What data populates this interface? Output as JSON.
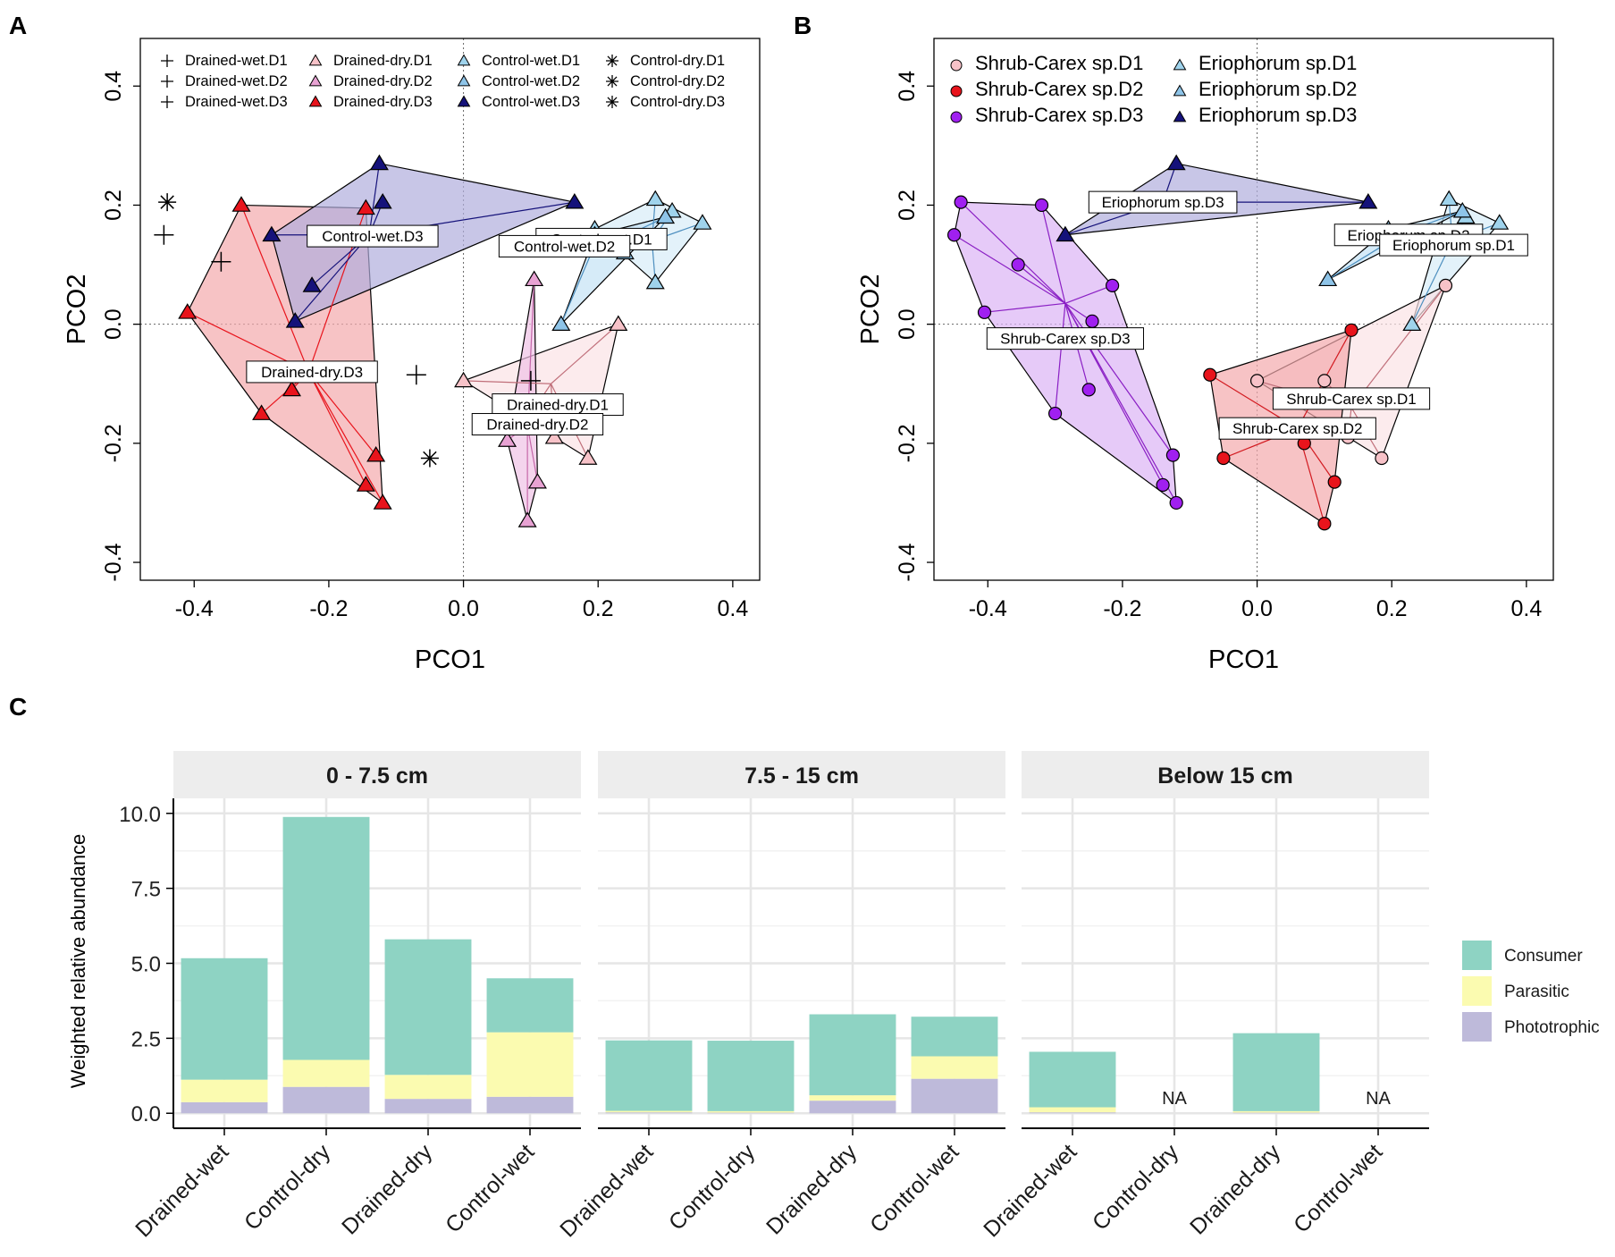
{
  "figure": {
    "panel_labels": [
      "A",
      "B",
      "C"
    ]
  },
  "colors": {
    "drained_dry": "#f4a9ad",
    "drained_dry_d1": "#f7c2c8",
    "drained_dry_d2": "#e8a2d3",
    "drained_dry_d3": "#e8141c",
    "control_wet_d1": "#9fd3ec",
    "control_wet_d2": "#8ec4e8",
    "control_wet_d3": "#15127a",
    "shrub_d1": "#f7c2c8",
    "shrub_d2": "#e8141c",
    "shrub_d3": "#a020f0",
    "erio_d1": "#9fd3ec",
    "erio_d2": "#8ec4e8",
    "erio_d3": "#15127a",
    "consumer": "#8ed3c3",
    "parasitic": "#fbfbb0",
    "phototrophic": "#bebada"
  },
  "chart_data": [
    {
      "id": "A",
      "type": "scatter",
      "title": "",
      "xlabel": "PCO1",
      "ylabel": "PCO2",
      "xlim": [
        -0.48,
        0.44
      ],
      "ylim": [
        -0.43,
        0.48
      ],
      "xticks": [
        "-0.4",
        "-0.2",
        "0.0",
        "0.2",
        "0.4"
      ],
      "xtick_values": [
        -0.4,
        -0.2,
        0.0,
        0.2,
        0.4
      ],
      "yticks": [
        "-0.4",
        "-0.2",
        "0.0",
        "0.2",
        "0.4"
      ],
      "ytick_values": [
        -0.4,
        -0.2,
        0.0,
        0.2,
        0.4
      ],
      "legend": [
        {
          "label": "Drained-wet.D1",
          "marker": "plus",
          "color": "#000000"
        },
        {
          "label": "Drained-wet.D2",
          "marker": "plus",
          "color": "#000000"
        },
        {
          "label": "Drained-wet.D3",
          "marker": "plus",
          "color": "#000000"
        },
        {
          "label": "Drained-dry.D1",
          "marker": "triangle",
          "color": "#f7c2c8"
        },
        {
          "label": "Drained-dry.D2",
          "marker": "triangle",
          "color": "#e8a2d3"
        },
        {
          "label": "Drained-dry.D3",
          "marker": "triangle",
          "color": "#e8141c"
        },
        {
          "label": "Control-wet.D1",
          "marker": "triangle",
          "color": "#9fd3ec"
        },
        {
          "label": "Control-wet.D2",
          "marker": "triangle",
          "color": "#8ec4e8"
        },
        {
          "label": "Control-wet.D3",
          "marker": "triangle",
          "color": "#15127a"
        },
        {
          "label": "Control-dry.D1",
          "marker": "star",
          "color": "#000000"
        },
        {
          "label": "Control-dry.D2",
          "marker": "star",
          "color": "#000000"
        },
        {
          "label": "Control-dry.D3",
          "marker": "star",
          "color": "#000000"
        }
      ],
      "groups": [
        {
          "name": "Drained-dry.D3",
          "color": "#e8141c",
          "fill": "#f4a9ad",
          "marker": "triangle",
          "centroid": [
            -0.23,
            -0.08
          ],
          "points": [
            [
              -0.41,
              0.02
            ],
            [
              -0.33,
              0.2
            ],
            [
              -0.145,
              0.195
            ],
            [
              -0.3,
              -0.15
            ],
            [
              -0.255,
              -0.11
            ],
            [
              -0.145,
              -0.27
            ],
            [
              -0.13,
              -0.22
            ],
            [
              -0.12,
              -0.3
            ]
          ]
        },
        {
          "name": "Control-wet.D3",
          "color": "#15127a",
          "fill": "#b1aedd",
          "marker": "triangle",
          "centroid": [
            -0.14,
            0.15
          ],
          "points": [
            [
              -0.285,
              0.15
            ],
            [
              -0.125,
              0.27
            ],
            [
              -0.12,
              0.205
            ],
            [
              0.165,
              0.205
            ],
            [
              -0.225,
              0.065
            ],
            [
              -0.25,
              0.005
            ]
          ]
        },
        {
          "name": "Control-wet.D1",
          "color": "#4d8fbf",
          "fill": "#d7ecf8",
          "marker": "triangle",
          "centroid": [
            0.28,
            0.14
          ],
          "points": [
            [
              0.195,
              0.16
            ],
            [
              0.285,
              0.21
            ],
            [
              0.355,
              0.17
            ],
            [
              0.31,
              0.19
            ],
            [
              0.285,
              0.07
            ]
          ]
        },
        {
          "name": "Control-wet.D2",
          "color": "#4d8fbf",
          "fill": "#c5e3f5",
          "marker": "triangle",
          "centroid": [
            0.19,
            0.12
          ],
          "points": [
            [
              0.145,
              0.0
            ],
            [
              0.195,
              0.15
            ],
            [
              0.3,
              0.18
            ],
            [
              0.24,
              0.12
            ]
          ]
        },
        {
          "name": "Drained-dry.D1",
          "color": "#c06f7a",
          "fill": "#fbe3e6",
          "marker": "triangle",
          "centroid": [
            0.13,
            -0.1
          ],
          "points": [
            [
              0.0,
              -0.095
            ],
            [
              0.23,
              0.0
            ],
            [
              0.185,
              -0.225
            ],
            [
              0.135,
              -0.19
            ],
            [
              0.095,
              -0.16
            ]
          ]
        },
        {
          "name": "Drained-dry.D2",
          "color": "#c467a9",
          "fill": "#efc2e6",
          "marker": "triangle",
          "centroid": [
            0.095,
            -0.17
          ],
          "points": [
            [
              0.105,
              0.075
            ],
            [
              0.065,
              -0.195
            ],
            [
              0.095,
              -0.33
            ],
            [
              0.11,
              -0.265
            ],
            [
              0.08,
              -0.14
            ]
          ]
        }
      ],
      "other_points": [
        {
          "name": "Drained-wet",
          "marker": "plus",
          "points": [
            [
              -0.445,
              0.15
            ],
            [
              -0.36,
              0.105
            ],
            [
              -0.07,
              -0.085
            ],
            [
              0.1,
              -0.095
            ]
          ]
        },
        {
          "name": "Control-dry",
          "marker": "star",
          "points": [
            [
              -0.44,
              0.205
            ],
            [
              -0.05,
              -0.225
            ]
          ]
        }
      ],
      "labels": [
        {
          "text": "Control-wet.D3",
          "at": [
            -0.135,
            0.148
          ]
        },
        {
          "text": "Control-wet.D1",
          "at": [
            0.205,
            0.143
          ]
        },
        {
          "text": "Control-wet.D2",
          "at": [
            0.15,
            0.131
          ]
        },
        {
          "text": "Drained-dry.D3",
          "at": [
            -0.225,
            -0.08
          ]
        },
        {
          "text": "Drained-dry.D1",
          "at": [
            0.14,
            -0.135
          ]
        },
        {
          "text": "Drained-dry.D2",
          "at": [
            0.11,
            -0.168
          ]
        }
      ]
    },
    {
      "id": "B",
      "type": "scatter",
      "title": "",
      "xlabel": "PCO1",
      "ylabel": "PCO2",
      "xlim": [
        -0.48,
        0.44
      ],
      "ylim": [
        -0.43,
        0.48
      ],
      "xticks": [
        "-0.4",
        "-0.2",
        "0.0",
        "0.2",
        "0.4"
      ],
      "xtick_values": [
        -0.4,
        -0.2,
        0.0,
        0.2,
        0.4
      ],
      "yticks": [
        "-0.4",
        "-0.2",
        "0.0",
        "0.2",
        "0.4"
      ],
      "ytick_values": [
        -0.4,
        -0.2,
        0.0,
        0.2,
        0.4
      ],
      "legend": [
        {
          "label": "Shrub-Carex sp.D1",
          "marker": "circle",
          "color": "#f7c2c8"
        },
        {
          "label": "Shrub-Carex sp.D2",
          "marker": "circle",
          "color": "#e8141c"
        },
        {
          "label": "Shrub-Carex sp.D3",
          "marker": "circle",
          "color": "#a020f0"
        },
        {
          "label": "Eriophorum sp.D1",
          "marker": "triangle",
          "color": "#9fd3ec"
        },
        {
          "label": "Eriophorum sp.D2",
          "marker": "triangle",
          "color": "#8ec4e8"
        },
        {
          "label": "Eriophorum sp.D3",
          "marker": "triangle",
          "color": "#15127a"
        }
      ],
      "groups": [
        {
          "name": "Shrub-Carex sp.D3",
          "color": "#8a1fc4",
          "fill": "#dcb3f5",
          "marker": "circle",
          "centroid": [
            -0.285,
            0.035
          ],
          "points": [
            [
              -0.44,
              0.205
            ],
            [
              -0.45,
              0.15
            ],
            [
              -0.32,
              0.2
            ],
            [
              -0.355,
              0.1
            ],
            [
              -0.405,
              0.02
            ],
            [
              -0.215,
              0.065
            ],
            [
              -0.245,
              0.005
            ],
            [
              -0.25,
              -0.11
            ],
            [
              -0.3,
              -0.15
            ],
            [
              -0.125,
              -0.22
            ],
            [
              -0.14,
              -0.27
            ],
            [
              -0.12,
              -0.3
            ]
          ]
        },
        {
          "name": "Eriophorum sp.D3",
          "color": "#15127a",
          "fill": "#b1aedd",
          "marker": "triangle",
          "centroid": [
            -0.14,
            0.205
          ],
          "points": [
            [
              -0.285,
              0.15
            ],
            [
              -0.12,
              0.27
            ],
            [
              0.165,
              0.205
            ]
          ]
        },
        {
          "name": "Eriophorum sp.D1",
          "color": "#4d8fbf",
          "fill": "#d7ecf8",
          "marker": "triangle",
          "centroid": [
            0.29,
            0.14
          ],
          "points": [
            [
              0.285,
              0.21
            ],
            [
              0.36,
              0.17
            ],
            [
              0.23,
              0.0
            ],
            [
              0.31,
              0.18
            ]
          ]
        },
        {
          "name": "Eriophorum sp.D2",
          "color": "#4d8fbf",
          "fill": "#c5e3f5",
          "marker": "triangle",
          "centroid": [
            0.22,
            0.155
          ],
          "points": [
            [
              0.105,
              0.075
            ],
            [
              0.305,
              0.19
            ],
            [
              0.195,
              0.16
            ]
          ]
        },
        {
          "name": "Shrub-Carex sp.D1",
          "color": "#c06f7a",
          "fill": "#fbe3e6",
          "marker": "circle",
          "centroid": [
            0.14,
            -0.14
          ],
          "points": [
            [
              0.0,
              -0.095
            ],
            [
              0.28,
              0.065
            ],
            [
              0.185,
              -0.225
            ],
            [
              0.135,
              -0.19
            ],
            [
              0.1,
              -0.095
            ]
          ]
        },
        {
          "name": "Shrub-Carex sp.D2",
          "color": "#d21a20",
          "fill": "#f4a9ad",
          "marker": "circle",
          "centroid": [
            0.06,
            -0.175
          ],
          "points": [
            [
              -0.07,
              -0.085
            ],
            [
              0.14,
              -0.01
            ],
            [
              -0.05,
              -0.225
            ],
            [
              0.1,
              -0.335
            ],
            [
              0.115,
              -0.265
            ],
            [
              0.07,
              -0.2
            ]
          ]
        }
      ],
      "other_points": [],
      "labels": [
        {
          "text": "Eriophorum sp.D3",
          "at": [
            -0.14,
            0.205
          ]
        },
        {
          "text": "Eriophorum sp.D2",
          "at": [
            0.225,
            0.15
          ]
        },
        {
          "text": "Eriophorum sp.D1",
          "at": [
            0.292,
            0.133
          ]
        },
        {
          "text": "Shrub-Carex sp.D3",
          "at": [
            -0.285,
            -0.024
          ]
        },
        {
          "text": "Shrub-Carex sp.D1",
          "at": [
            0.14,
            -0.125
          ]
        },
        {
          "text": "Shrub-Carex sp.D2",
          "at": [
            0.06,
            -0.175
          ]
        }
      ]
    },
    {
      "id": "C",
      "type": "bar",
      "stacked": true,
      "title": "",
      "xlabel": "",
      "ylabel": "Weighted relative abundance",
      "ylim": [
        -0.5,
        10.5
      ],
      "yticks": [
        "0.0",
        "2.5",
        "5.0",
        "7.5",
        "10.0"
      ],
      "ytick_values": [
        0.0,
        2.5,
        5.0,
        7.5,
        10.0
      ],
      "stack_order": [
        "Phototrophic",
        "Parasitic",
        "Consumer"
      ],
      "legend": [
        "Consumer",
        "Parasitic",
        "Phototrophic"
      ],
      "facets": [
        {
          "title": "0 - 7.5 cm",
          "categories": [
            "Drained-wet",
            "Control-dry",
            "Drained-dry",
            "Control-wet"
          ],
          "series": [
            {
              "name": "Phototrophic",
              "values": [
                0.37,
                0.88,
                0.48,
                0.55
              ]
            },
            {
              "name": "Parasitic",
              "values": [
                0.75,
                0.9,
                0.8,
                2.15
              ]
            },
            {
              "name": "Consumer",
              "values": [
                4.05,
                8.1,
                4.52,
                1.8
              ]
            }
          ],
          "na": []
        },
        {
          "title": "7.5 - 15 cm",
          "categories": [
            "Drained-wet",
            "Control-dry",
            "Drained-dry",
            "Control-wet"
          ],
          "series": [
            {
              "name": "Phototrophic",
              "values": [
                0.03,
                0.02,
                0.42,
                1.15
              ]
            },
            {
              "name": "Parasitic",
              "values": [
                0.05,
                0.05,
                0.18,
                0.75
              ]
            },
            {
              "name": "Consumer",
              "values": [
                2.35,
                2.35,
                2.7,
                1.32
              ]
            }
          ],
          "na": []
        },
        {
          "title": "Below 15 cm",
          "categories": [
            "Drained-wet",
            "Control-dry",
            "Drained-dry",
            "Control-wet"
          ],
          "series": [
            {
              "name": "Phototrophic",
              "values": [
                0.03,
                0,
                0.02,
                0
              ]
            },
            {
              "name": "Parasitic",
              "values": [
                0.17,
                0,
                0.05,
                0
              ]
            },
            {
              "name": "Consumer",
              "values": [
                1.85,
                0,
                2.6,
                0
              ]
            }
          ],
          "na": [
            1,
            3
          ],
          "na_label": "NA"
        }
      ]
    }
  ]
}
